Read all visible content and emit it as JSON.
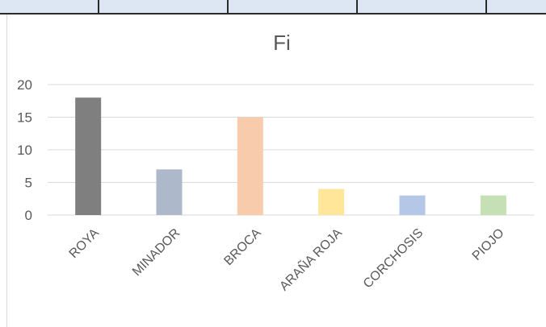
{
  "chart_data": {
    "type": "bar",
    "title": "Fi",
    "categories": [
      "ROYA",
      "MINADOR",
      "BROCA",
      "ARAÑA ROJA",
      "CORCHOSIS",
      "PIOJO"
    ],
    "values": [
      18,
      7,
      15,
      4,
      3,
      3
    ],
    "bar_colors": [
      "#7f7f7f",
      "#adb9ca",
      "#f8cbad",
      "#ffe699",
      "#b4c7e7",
      "#c5e0b4"
    ],
    "yticks": [
      0,
      5,
      10,
      15,
      20
    ],
    "ylim": [
      0,
      20
    ],
    "xlabel": "",
    "ylabel": "",
    "grid": true,
    "legend": "none"
  }
}
